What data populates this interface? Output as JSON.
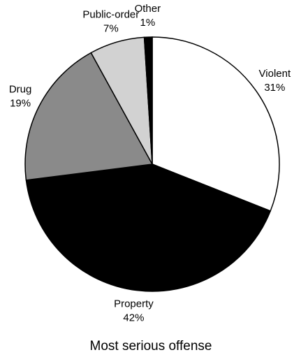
{
  "chart_data": {
    "type": "pie",
    "title": "Most serious offense",
    "categories": [
      "Violent",
      "Property",
      "Drug",
      "Public-order",
      "Other"
    ],
    "values": [
      31,
      42,
      19,
      7,
      1
    ],
    "value_labels": [
      "31%",
      "42%",
      "19%",
      "7%",
      "1%"
    ],
    "colors": [
      "#ffffff",
      "#000000",
      "#8a8a8a",
      "#d2d2d2",
      "#000000"
    ]
  }
}
